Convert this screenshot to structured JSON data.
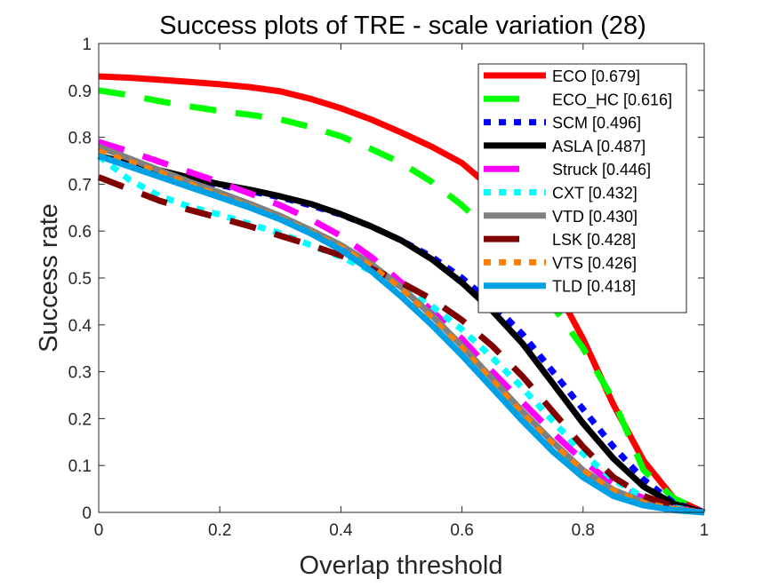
{
  "chart_data": {
    "type": "line",
    "title": "Success plots of TRE - scale variation (28)",
    "xlabel": "Overlap threshold",
    "ylabel": "Success rate",
    "xlim": [
      0,
      1
    ],
    "ylim": [
      0,
      1
    ],
    "xticks": [
      0,
      0.2,
      0.4,
      0.6,
      0.8,
      1
    ],
    "xtick_labels": [
      "0",
      "0.2",
      "0.4",
      "0.6",
      "0.8",
      "1"
    ],
    "yticks": [
      0,
      0.1,
      0.2,
      0.3,
      0.4,
      0.5,
      0.6,
      0.7,
      0.8,
      0.9,
      1
    ],
    "ytick_labels": [
      "0",
      "0.1",
      "0.2",
      "0.3",
      "0.4",
      "0.5",
      "0.6",
      "0.7",
      "0.8",
      "0.9",
      "1"
    ],
    "grid": false,
    "legend_position": "top-right",
    "x": [
      0,
      0.05,
      0.1,
      0.15,
      0.2,
      0.25,
      0.3,
      0.35,
      0.4,
      0.45,
      0.5,
      0.55,
      0.6,
      0.65,
      0.7,
      0.75,
      0.8,
      0.85,
      0.9,
      0.95,
      1
    ],
    "series": [
      {
        "name": "ECO",
        "label": "ECO [0.679]",
        "score": 0.679,
        "color": "#ff0000",
        "style": "solid",
        "values": [
          0.93,
          0.927,
          0.923,
          0.918,
          0.913,
          0.907,
          0.898,
          0.882,
          0.862,
          0.838,
          0.81,
          0.78,
          0.745,
          0.69,
          0.6,
          0.49,
          0.37,
          0.23,
          0.11,
          0.03,
          0.0
        ]
      },
      {
        "name": "ECO_HC",
        "label": "ECO_HC [0.616]",
        "score": 0.616,
        "color": "#00ff00",
        "style": "dashed",
        "values": [
          0.9,
          0.89,
          0.877,
          0.866,
          0.856,
          0.848,
          0.838,
          0.822,
          0.802,
          0.775,
          0.745,
          0.705,
          0.655,
          0.595,
          0.52,
          0.44,
          0.35,
          0.24,
          0.09,
          0.03,
          0.0
        ]
      },
      {
        "name": "SCM",
        "label": "SCM [0.496]",
        "score": 0.496,
        "color": "#0000ff",
        "style": "dotted",
        "values": [
          0.76,
          0.745,
          0.728,
          0.712,
          0.698,
          0.685,
          0.672,
          0.655,
          0.635,
          0.61,
          0.58,
          0.545,
          0.5,
          0.445,
          0.38,
          0.3,
          0.22,
          0.14,
          0.07,
          0.02,
          0.0
        ]
      },
      {
        "name": "ASLA",
        "label": "ASLA [0.487]",
        "score": 0.487,
        "color": "#000000",
        "style": "solid",
        "values": [
          0.76,
          0.745,
          0.73,
          0.714,
          0.7,
          0.688,
          0.674,
          0.658,
          0.636,
          0.61,
          0.58,
          0.54,
          0.49,
          0.43,
          0.36,
          0.275,
          0.19,
          0.115,
          0.055,
          0.018,
          0.0
        ]
      },
      {
        "name": "Struck",
        "label": "Struck [0.446]",
        "score": 0.446,
        "color": "#ff00ff",
        "style": "dashed",
        "values": [
          0.79,
          0.77,
          0.748,
          0.726,
          0.704,
          0.68,
          0.655,
          0.625,
          0.59,
          0.545,
          0.49,
          0.43,
          0.37,
          0.3,
          0.235,
          0.17,
          0.11,
          0.06,
          0.03,
          0.01,
          0.0
        ]
      },
      {
        "name": "CXT",
        "label": "CXT [0.432]",
        "score": 0.432,
        "color": "#00ffff",
        "style": "dotted",
        "values": [
          0.76,
          0.71,
          0.675,
          0.652,
          0.635,
          0.615,
          0.595,
          0.57,
          0.545,
          0.515,
          0.48,
          0.44,
          0.39,
          0.33,
          0.265,
          0.195,
          0.125,
          0.07,
          0.032,
          0.01,
          0.0
        ]
      },
      {
        "name": "VTD",
        "label": "VTD [0.430]",
        "score": 0.43,
        "color": "#808080",
        "style": "solid",
        "values": [
          0.78,
          0.755,
          0.73,
          0.705,
          0.682,
          0.658,
          0.632,
          0.602,
          0.57,
          0.53,
          0.48,
          0.42,
          0.355,
          0.285,
          0.215,
          0.15,
          0.09,
          0.048,
          0.022,
          0.008,
          0.0
        ]
      },
      {
        "name": "LSK",
        "label": "LSK [0.428]",
        "score": 0.428,
        "color": "#800000",
        "style": "dashed",
        "values": [
          0.715,
          0.69,
          0.665,
          0.645,
          0.628,
          0.61,
          0.59,
          0.57,
          0.548,
          0.52,
          0.49,
          0.455,
          0.41,
          0.355,
          0.29,
          0.215,
          0.14,
          0.075,
          0.035,
          0.012,
          0.0
        ]
      },
      {
        "name": "VTS",
        "label": "VTS [0.426]",
        "score": 0.426,
        "color": "#ff8000",
        "style": "dotted",
        "values": [
          0.77,
          0.748,
          0.725,
          0.7,
          0.675,
          0.652,
          0.627,
          0.597,
          0.565,
          0.525,
          0.475,
          0.415,
          0.35,
          0.28,
          0.21,
          0.145,
          0.088,
          0.046,
          0.02,
          0.007,
          0.0
        ]
      },
      {
        "name": "TLD",
        "label": "TLD [0.418]",
        "score": 0.418,
        "color": "#00a0e6",
        "style": "solid",
        "values": [
          0.76,
          0.738,
          0.716,
          0.694,
          0.672,
          0.65,
          0.625,
          0.595,
          0.56,
          0.515,
          0.46,
          0.4,
          0.335,
          0.265,
          0.195,
          0.13,
          0.075,
          0.035,
          0.015,
          0.005,
          0.0
        ]
      }
    ]
  }
}
